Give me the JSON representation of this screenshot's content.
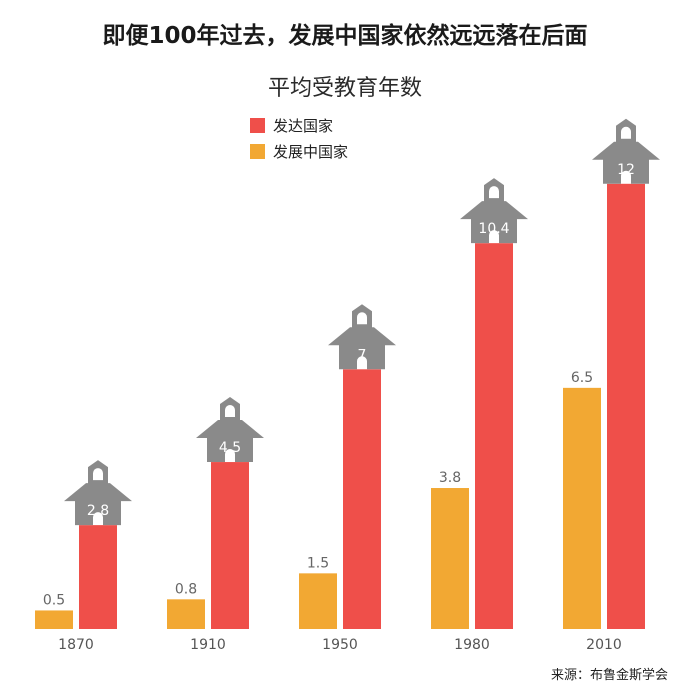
{
  "header": {
    "title": "即便100年过去，发展中国家依然远远落在后面",
    "subtitle": "平均受教育年数"
  },
  "legend": [
    {
      "label": "发达国家",
      "color": "#ef4f4a"
    },
    {
      "label": "发展中国家",
      "color": "#f2a833"
    }
  ],
  "source": "来源：布鲁金斯学会",
  "chart_data": {
    "type": "bar",
    "title": "即便100年过去，发展中国家依然远远落在后面",
    "subtitle": "平均受教育年数",
    "categories": [
      "1870",
      "1910",
      "1950",
      "1980",
      "2010"
    ],
    "series": [
      {
        "name": "发展中国家",
        "color": "#f2a833",
        "values": [
          0.5,
          0.8,
          1.5,
          3.8,
          6.5
        ]
      },
      {
        "name": "发达国家",
        "color": "#ef4f4a",
        "values": [
          2.8,
          4.5,
          7,
          10.4,
          12
        ]
      }
    ],
    "value_labels": {
      "发展中国家": [
        "0.5",
        "0.8",
        "1.5",
        "3.8",
        "6.5"
      ],
      "发达国家": [
        "2.8",
        "4.5",
        "7",
        "10.4",
        "12"
      ]
    },
    "ylim": [
      0,
      12
    ],
    "grid": false,
    "legend_position": "top-center",
    "developed_marker_icon": "schoolhouse-icon"
  }
}
